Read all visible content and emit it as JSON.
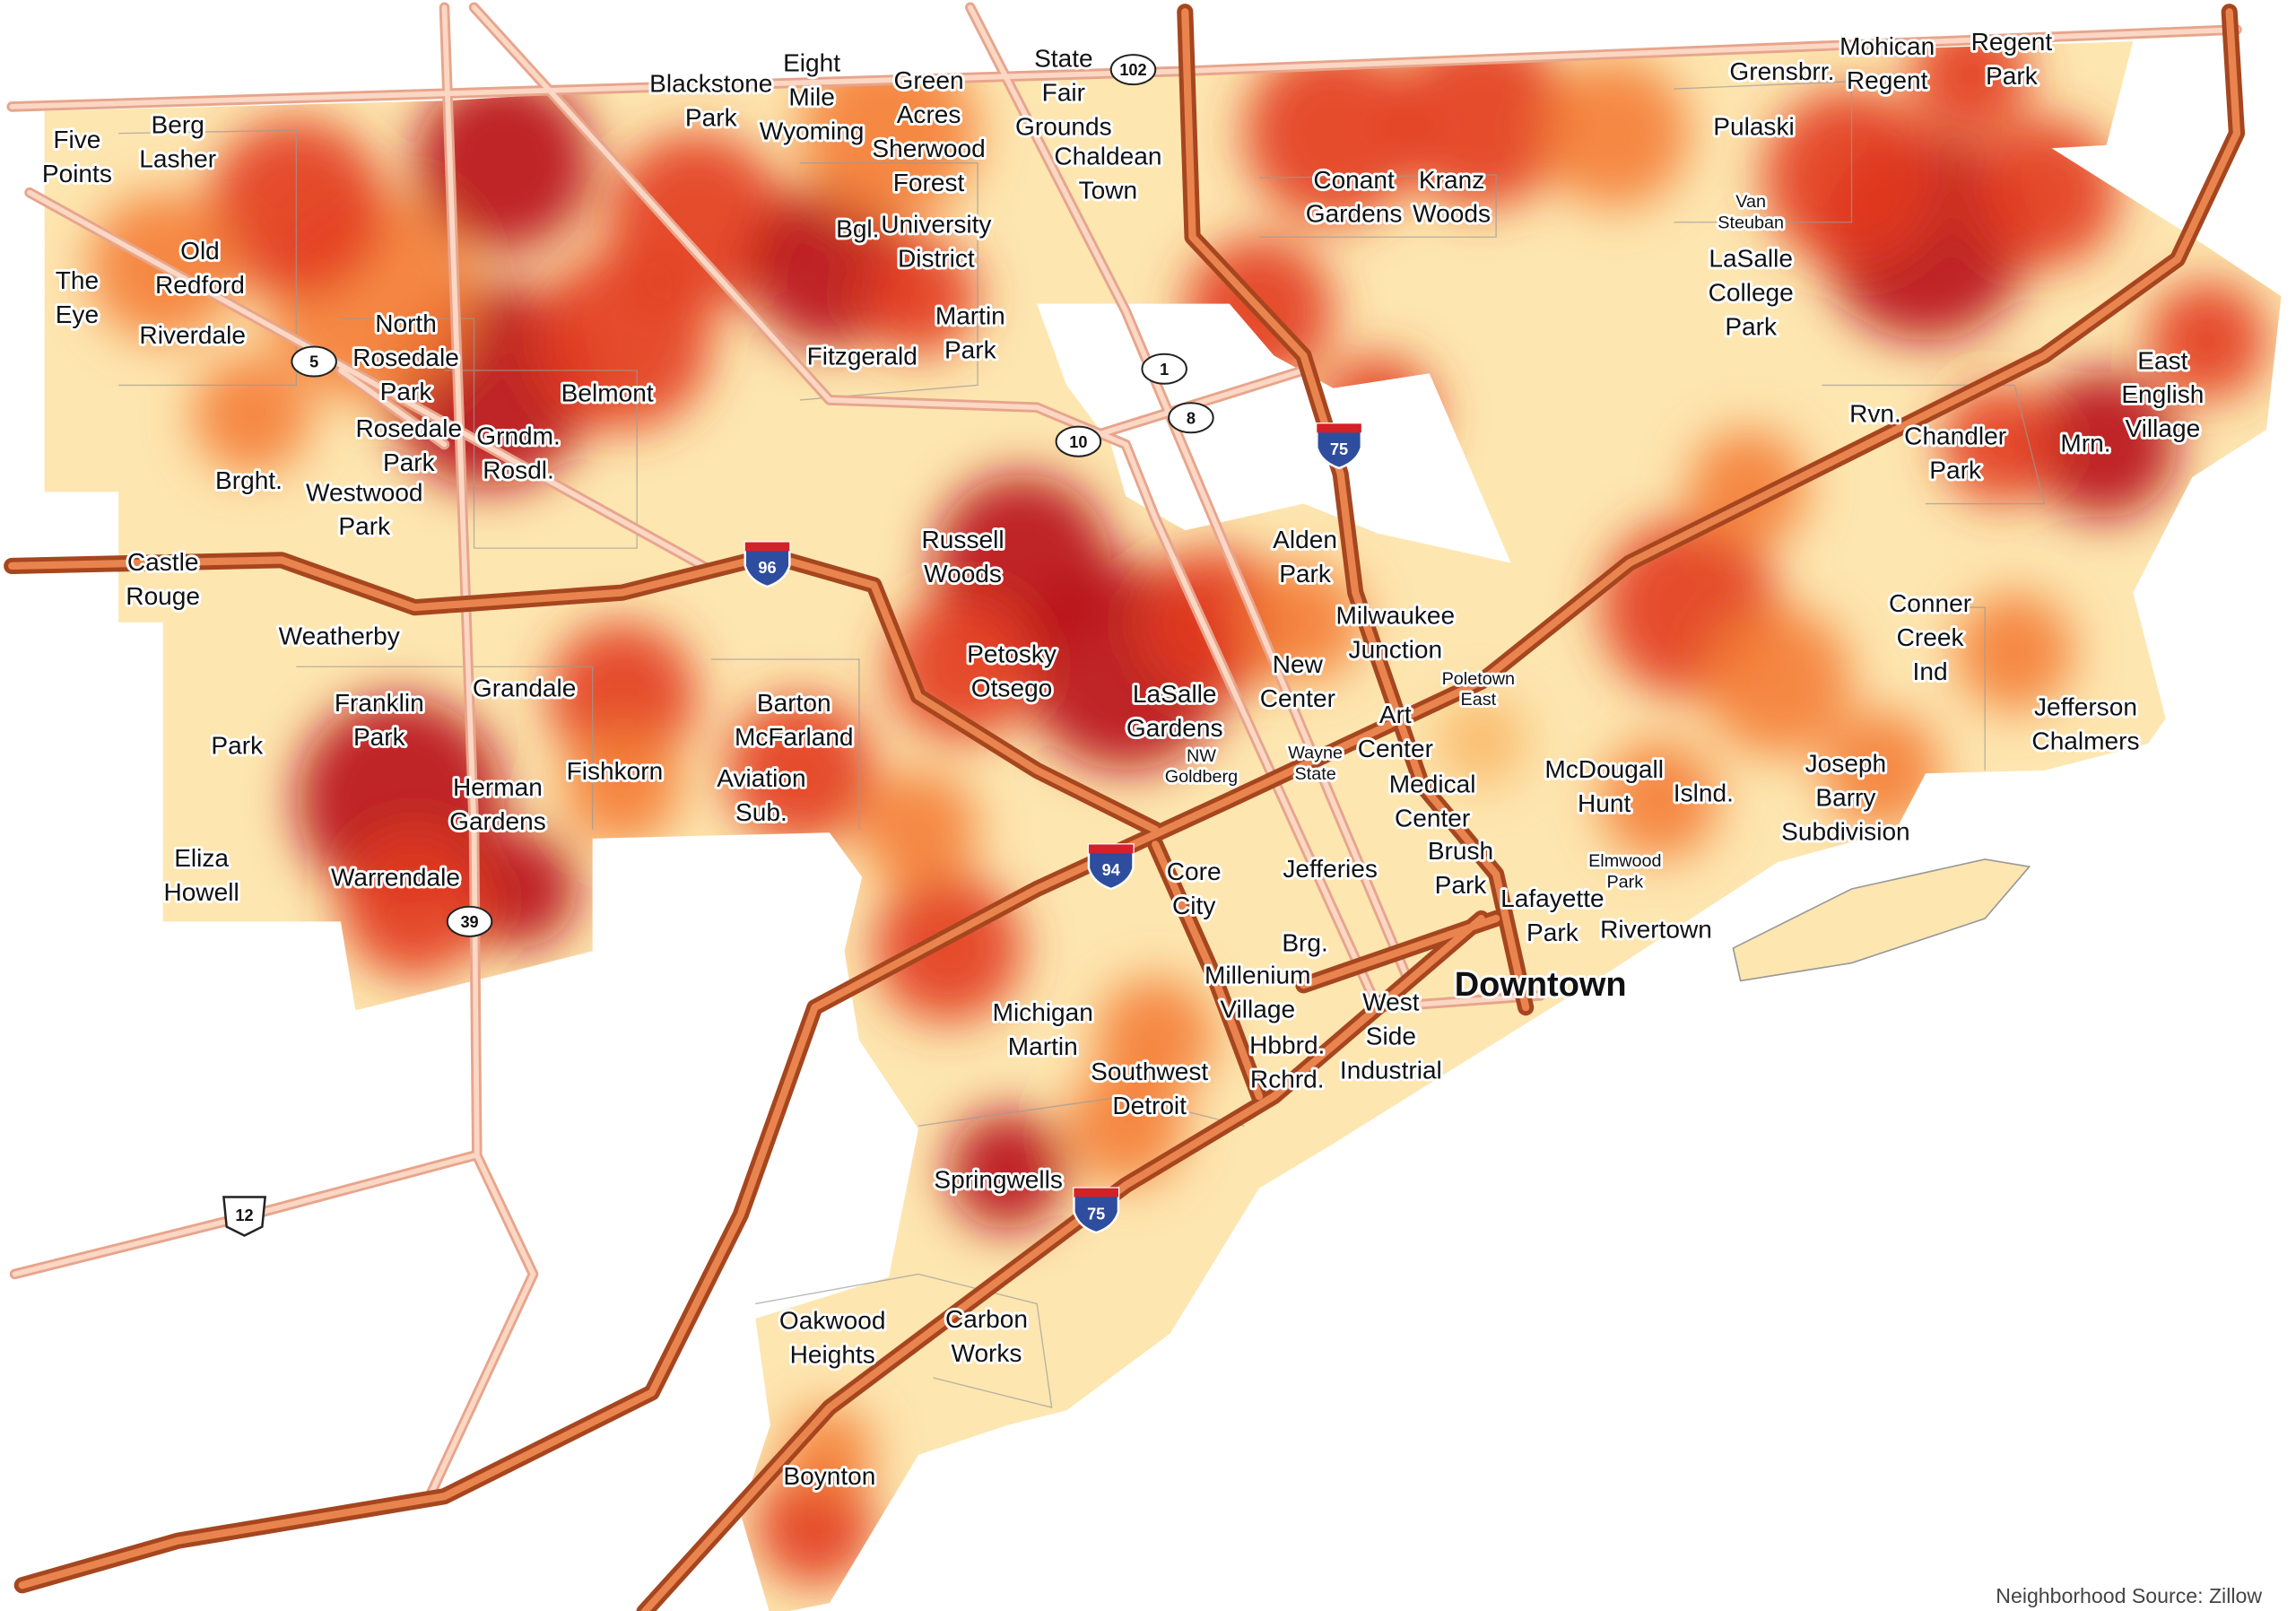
{
  "map": {
    "labels": [
      {
        "lines": [
          "Five",
          "Points"
        ]
      },
      {
        "lines": [
          "Berg",
          "Lasher"
        ]
      },
      {
        "lines": [
          "The",
          "Eye"
        ]
      },
      {
        "lines": [
          "Old",
          "Redford"
        ]
      },
      {
        "lines": [
          "Riverdale"
        ]
      },
      {
        "lines": [
          "North",
          "Rosedale",
          "Park"
        ]
      },
      {
        "lines": [
          "Rosedale",
          "Park"
        ]
      },
      {
        "lines": [
          "Belmont"
        ]
      },
      {
        "lines": [
          "Grndm.",
          "Rosdl."
        ]
      },
      {
        "lines": [
          "Brght."
        ]
      },
      {
        "lines": [
          "Westwood",
          "Park"
        ]
      },
      {
        "lines": [
          "Castle",
          "Rouge"
        ]
      },
      {
        "lines": [
          "Weatherby"
        ]
      },
      {
        "lines": [
          "Franklin",
          "Park"
        ]
      },
      {
        "lines": [
          "Grandale"
        ]
      },
      {
        "lines": [
          "Park"
        ]
      },
      {
        "lines": [
          "Herman",
          "Gardens"
        ]
      },
      {
        "lines": [
          "Fishkorn"
        ]
      },
      {
        "lines": [
          "Barton",
          "McFarland"
        ]
      },
      {
        "lines": [
          "Aviation",
          "Sub."
        ]
      },
      {
        "lines": [
          "Eliza",
          "Howell"
        ]
      },
      {
        "lines": [
          "Warrendale"
        ]
      },
      {
        "lines": [
          "Blackstone",
          "Park"
        ]
      },
      {
        "lines": [
          "Eight",
          "Mile",
          "Wyoming"
        ]
      },
      {
        "lines": [
          "Green",
          "Acres",
          "Sherwood",
          "Forest"
        ]
      },
      {
        "lines": [
          "State",
          "Fair",
          "Grounds"
        ]
      },
      {
        "lines": [
          "Chaldean",
          "Town"
        ]
      },
      {
        "lines": [
          "Bgl."
        ]
      },
      {
        "lines": [
          "University",
          "District"
        ]
      },
      {
        "lines": [
          "Fitzgerald"
        ]
      },
      {
        "lines": [
          "Martin",
          "Park"
        ]
      },
      {
        "lines": [
          "Russell",
          "Woods"
        ]
      },
      {
        "lines": [
          "Petosky",
          "Otsego"
        ]
      },
      {
        "lines": [
          "LaSalle",
          "Gardens"
        ]
      },
      {
        "lines": [
          "NW",
          "Goldberg"
        ]
      },
      {
        "lines": [
          "New",
          "Center"
        ]
      },
      {
        "lines": [
          "Alden",
          "Park"
        ]
      },
      {
        "lines": [
          "Milwaukee",
          "Junction"
        ]
      },
      {
        "lines": [
          "Poletown",
          "East"
        ]
      },
      {
        "lines": [
          "Art",
          "Center"
        ]
      },
      {
        "lines": [
          "Wayne",
          "State"
        ]
      },
      {
        "lines": [
          "Medical",
          "Center"
        ]
      },
      {
        "lines": [
          "Jefferies"
        ]
      },
      {
        "lines": [
          "Brush",
          "Park"
        ]
      },
      {
        "lines": [
          "Core",
          "City"
        ]
      },
      {
        "lines": [
          "Brg."
        ]
      },
      {
        "lines": [
          "Millenium",
          "Village"
        ]
      },
      {
        "lines": [
          "West",
          "Side",
          "Industrial"
        ]
      },
      {
        "lines": [
          "Hbbrd.",
          "Rchrd."
        ]
      },
      {
        "lines": [
          "Michigan",
          "Martin"
        ]
      },
      {
        "lines": [
          "Southwest",
          "Detroit"
        ]
      },
      {
        "lines": [
          "Springwells"
        ]
      },
      {
        "lines": [
          "Oakwood",
          "Heights"
        ]
      },
      {
        "lines": [
          "Carbon",
          "Works"
        ]
      },
      {
        "lines": [
          "Boynton"
        ]
      },
      {
        "lines": [
          "Lafayette",
          "Park"
        ]
      },
      {
        "lines": [
          "Rivertown"
        ]
      },
      {
        "lines": [
          "McDougall",
          "Hunt"
        ]
      },
      {
        "lines": [
          "Islnd."
        ]
      },
      {
        "lines": [
          "Elmwood",
          "Park"
        ]
      },
      {
        "lines": [
          "Joseph",
          "Barry",
          "Subdivision"
        ]
      },
      {
        "lines": [
          "Conant",
          "Gardens"
        ]
      },
      {
        "lines": [
          "Kranz",
          "Woods"
        ]
      },
      {
        "lines": [
          "Grensbrr."
        ]
      },
      {
        "lines": [
          "Mohican",
          "Regent"
        ]
      },
      {
        "lines": [
          "Regent",
          "Park"
        ]
      },
      {
        "lines": [
          "Pulaski"
        ]
      },
      {
        "lines": [
          "Van",
          "Steuban"
        ]
      },
      {
        "lines": [
          "LaSalle",
          "College",
          "Park"
        ]
      },
      {
        "lines": [
          "Rvn."
        ]
      },
      {
        "lines": [
          "Chandler",
          "Park"
        ]
      },
      {
        "lines": [
          "Mrn."
        ]
      },
      {
        "lines": [
          "East",
          "English",
          "Village"
        ]
      },
      {
        "lines": [
          "Conner",
          "Creek",
          "Ind"
        ]
      },
      {
        "lines": [
          "Jefferson",
          "Chalmers"
        ]
      }
    ],
    "downtown": "Downtown",
    "route_shields": [
      "102",
      "1",
      "8",
      "10",
      "5",
      "39",
      "12"
    ],
    "interstate_shields": [
      "96",
      "94",
      "75",
      "75"
    ],
    "source": "Neighborhood Source: Zillow"
  }
}
